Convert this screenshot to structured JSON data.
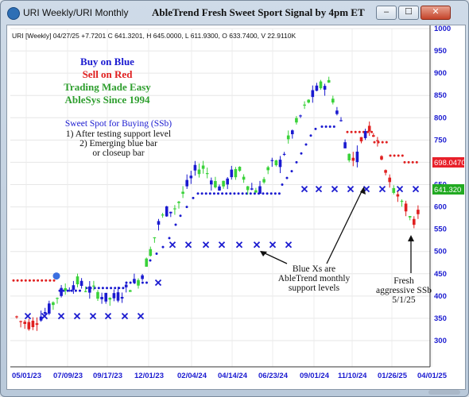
{
  "window": {
    "app_title": "URI Weekly/URI Monthly",
    "chart_title": "AbleTrend Fresh Sweet Sport Signal by 4pm ET",
    "buttons": {
      "minimize": "‒",
      "maximize": "☐",
      "close": "✕"
    }
  },
  "chart_data": {
    "type": "candlestick",
    "header": "URI [Weekly] 04/27/25 +7.7201 C 641.3201, H 645.0000, L 611.9300, O 633.7400, V 22.9110K",
    "ylim": [
      275,
      1000
    ],
    "y_ticks": [
      300,
      350,
      400,
      450,
      500,
      550,
      600,
      650,
      700,
      750,
      800,
      850,
      900,
      950,
      1000
    ],
    "x_ticks": [
      "05/01/23",
      "07/09/23",
      "09/17/23",
      "12/01/23",
      "02/04/24",
      "04/14/24",
      "06/23/24",
      "09/01/24",
      "11/10/24",
      "01/26/25",
      "04/01/25"
    ],
    "price_tags": [
      {
        "value": 698,
        "label": "698.0470",
        "color": "#e8202a"
      },
      {
        "value": 641,
        "label": "641.320",
        "color": "#22aa22"
      }
    ],
    "legend_lines": [
      {
        "text": "Buy on Blue",
        "color": "#1a1ad0"
      },
      {
        "text": "Sell on Red",
        "color": "#e02020"
      },
      {
        "text": "Trading Made Easy",
        "color": "#2e9e2e"
      },
      {
        "text": "AbleSys Since 1994",
        "color": "#2e9e2e"
      }
    ],
    "note_title": "Sweet Spot for Buying (SSb)",
    "note_lines": [
      "1) After testing support level",
      "2) Emerging blue bar",
      "or closeup bar"
    ],
    "annotation_monthly": [
      "Blue Xs are",
      "AbleTrend monthly",
      "support levels"
    ],
    "annotation_fresh": [
      "Fresh",
      "aggressive SSb",
      "5/1/25"
    ],
    "colors": {
      "blue": "#1a1ad0",
      "red": "#e02020",
      "green": "#3ad23a"
    }
  }
}
